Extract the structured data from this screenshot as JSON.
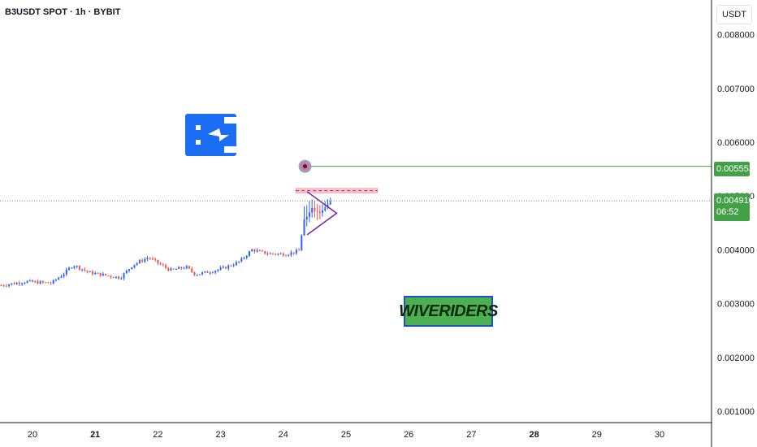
{
  "header": {
    "symbol": "B3USDT SPOT",
    "interval": "1h",
    "exchange": "BYBIT",
    "separator": " · "
  },
  "toolbar": {
    "currency_label": "USDT"
  },
  "price_tags": {
    "target_value": "0.005553",
    "last_value": "0.004910",
    "countdown": "06:52"
  },
  "watermark_text": "WIVERIDERS",
  "logo_icon": "b3-logo-icon",
  "colors": {
    "up": "#26a69a",
    "bullish_candle": "#2962ff",
    "bearish_candle": "#ef5350",
    "target_line": "#43a047",
    "resistance_zone": "#f8a5b8",
    "triangle": "#7b1fa2",
    "logo_blue": "#1b6ef3"
  },
  "chart_data": {
    "type": "candlestick",
    "title": "B3USDT SPOT · 1h · BYBIT",
    "x_ticks": [
      "20",
      "21",
      "22",
      "23",
      "24",
      "25",
      "26",
      "27",
      "28",
      "29",
      "30"
    ],
    "y_ticks": [
      "0.008000",
      "0.007000",
      "0.006000",
      "0.005000",
      "0.004000",
      "0.003000",
      "0.002000",
      "0.001000"
    ],
    "ylim": [
      0.0006,
      0.0086
    ],
    "xlim_days": [
      19.5,
      31.0
    ],
    "price_path": [
      [
        19.5,
        0.00334
      ],
      [
        19.9,
        0.00341
      ],
      [
        20.3,
        0.00338
      ],
      [
        20.5,
        0.00356
      ],
      [
        20.65,
        0.00372
      ],
      [
        20.9,
        0.00358
      ],
      [
        21.2,
        0.00352
      ],
      [
        21.4,
        0.00348
      ],
      [
        21.6,
        0.00372
      ],
      [
        21.85,
        0.00386
      ],
      [
        22.05,
        0.00372
      ],
      [
        22.2,
        0.00362
      ],
      [
        22.45,
        0.00368
      ],
      [
        22.6,
        0.00354
      ],
      [
        22.85,
        0.0036
      ],
      [
        23.05,
        0.00366
      ],
      [
        23.3,
        0.00378
      ],
      [
        23.5,
        0.004
      ],
      [
        23.75,
        0.00393
      ],
      [
        24.05,
        0.00392
      ],
      [
        24.25,
        0.00398
      ],
      [
        24.33,
        0.00455
      ],
      [
        24.45,
        0.00478
      ],
      [
        24.6,
        0.00468
      ],
      [
        24.75,
        0.00491
      ]
    ],
    "last_price": 0.00491,
    "target_price": 0.005553,
    "resistance_zone": {
      "from": 0.00506,
      "to": 0.00514,
      "x_start": 24.2,
      "x_end": 25.5
    },
    "triangle": {
      "start_day": 24.38,
      "apex_day": 24.85,
      "top": 0.00508,
      "bottom": 0.00428,
      "apex": 0.00468
    },
    "target_marker_day": 24.45,
    "grid": false
  }
}
